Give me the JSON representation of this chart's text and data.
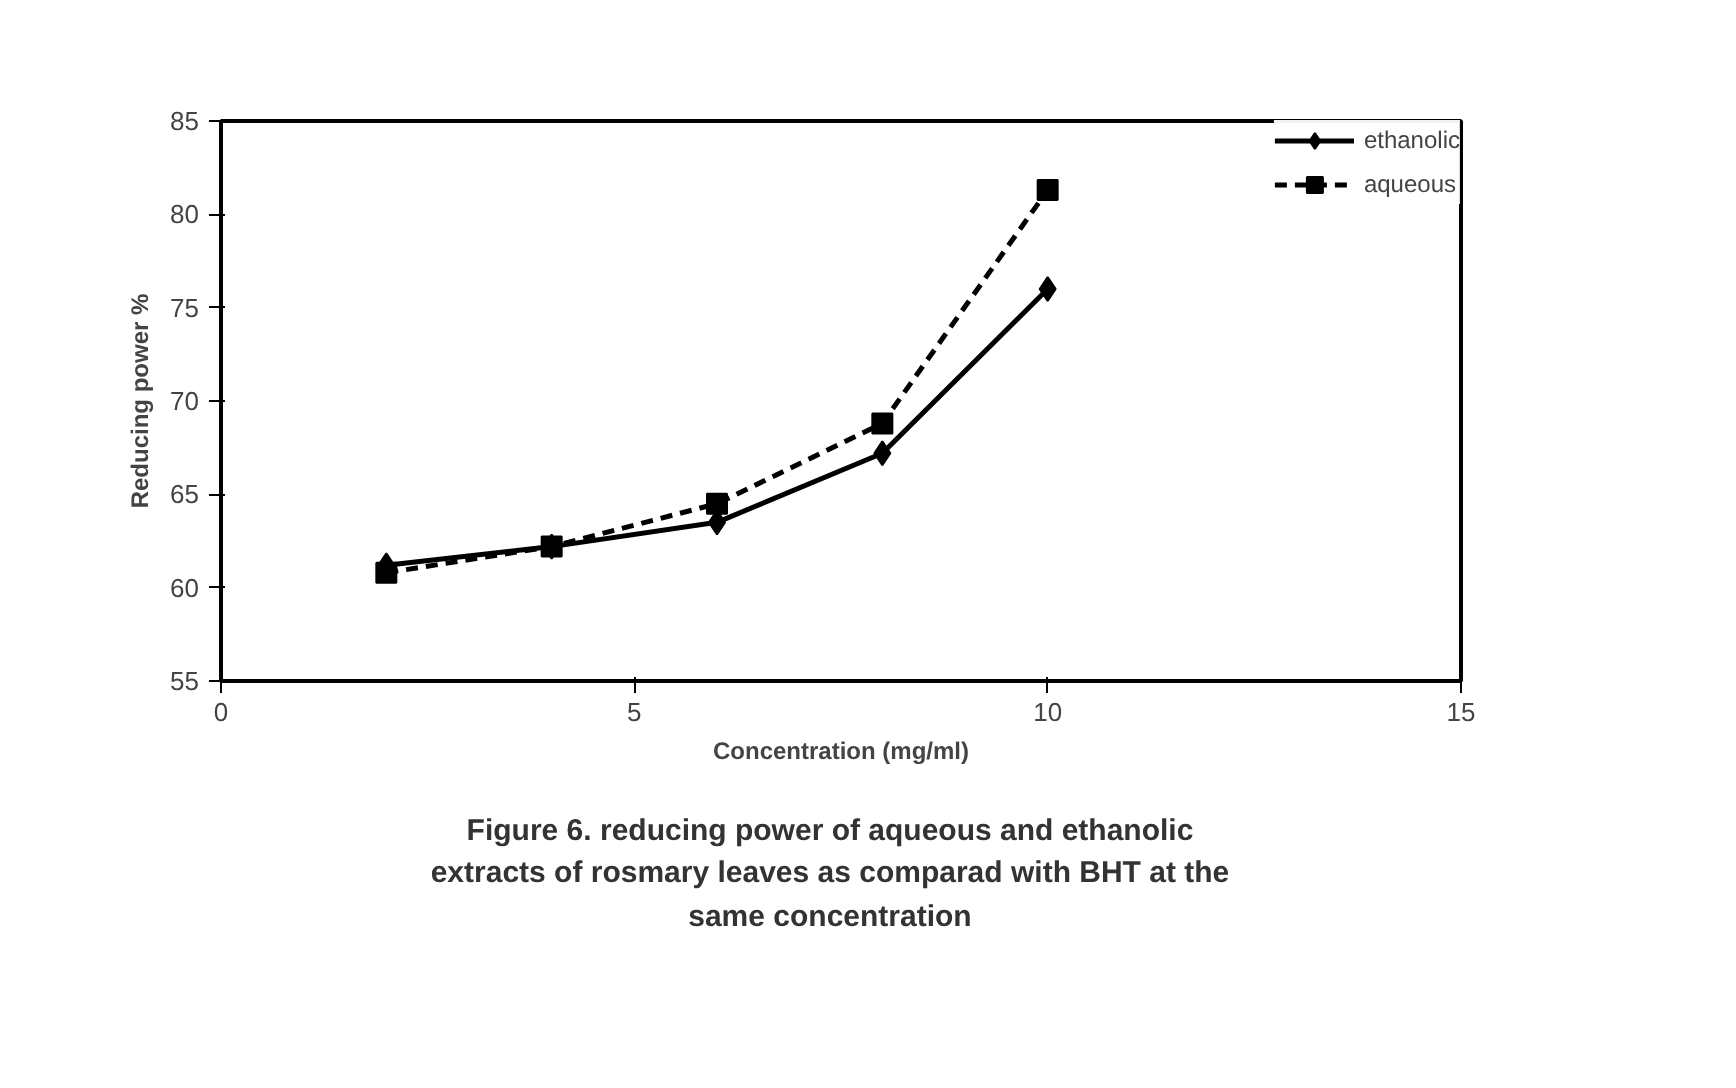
{
  "chart_data": {
    "type": "line",
    "xlabel": "Concentration (mg/ml)",
    "ylabel": "Reducing power %",
    "x": [
      2,
      4,
      6,
      8,
      10
    ],
    "series": [
      {
        "name": "ethanolic",
        "color": "#000000",
        "values": [
          61.2,
          62.2,
          63.5,
          67.2,
          76.0
        ],
        "marker": "diamond",
        "line_style": "solid"
      },
      {
        "name": "aqueous",
        "color": "#000000",
        "values": [
          60.8,
          62.2,
          64.5,
          68.8,
          81.3
        ],
        "marker": "square",
        "line_style": "dashed"
      }
    ],
    "xlim": [
      0,
      15
    ],
    "xticks": [
      0,
      5,
      10,
      15
    ],
    "ylim": [
      55,
      85
    ],
    "yticks": [
      55,
      60,
      65,
      70,
      75,
      80,
      85
    ],
    "grid": false,
    "legend": "top right",
    "annotations": [
      "Figure 6. reducing power of aqueous and ethanolic\nextracts of rosmary leaves as comparad  with BHT at the\nsame concentration"
    ]
  }
}
